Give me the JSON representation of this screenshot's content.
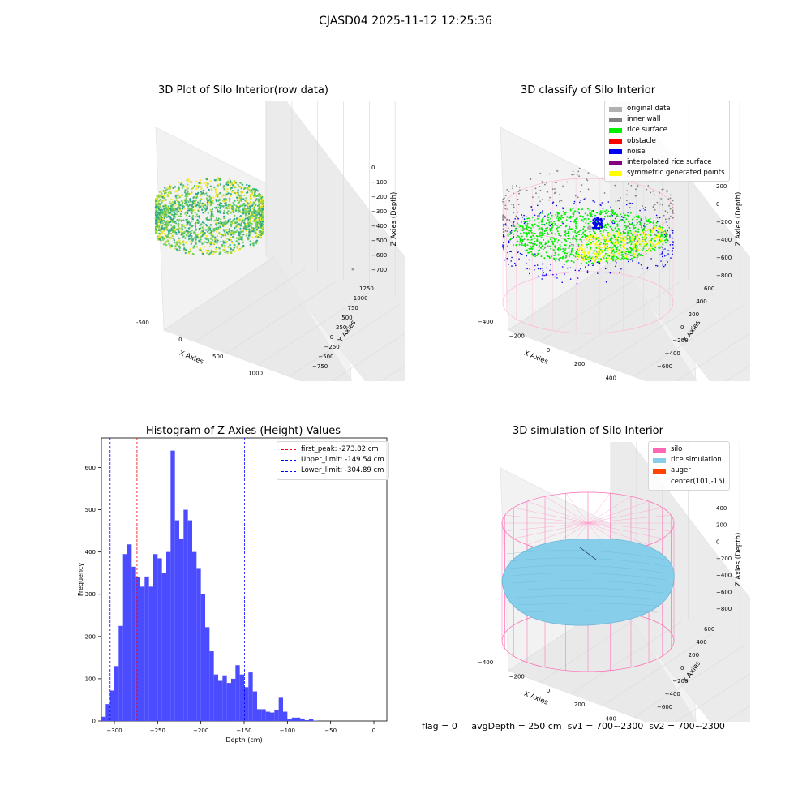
{
  "suptitle": "CJASD04 2025-11-12 12:25:36",
  "panels": {
    "raw": {
      "title": "3D Plot of Silo Interior(row data)",
      "xlabel": "X Axies",
      "ylabel": "Y Axies",
      "zlabel": "Z Axies (Depth)",
      "xticks": [
        "-500",
        "0",
        "500",
        "1000",
        "1500"
      ],
      "yticks": [
        "1250",
        "1000",
        "750",
        "500",
        "250",
        "0",
        "−250",
        "−500",
        "−750"
      ],
      "zticks": [
        "0",
        "−100",
        "−200",
        "−300",
        "−400",
        "−500",
        "−600",
        "−700"
      ]
    },
    "classify": {
      "title": "3D classify of Silo Interior",
      "xlabel": "X Axies",
      "ylabel": "Y Axies",
      "zlabel": "Z Axies (Depth)",
      "xticks": [
        "−400",
        "−200",
        "0",
        "200",
        "400",
        "600"
      ],
      "yticks": [
        "600",
        "400",
        "200",
        "0",
        "−200",
        "−400",
        "−600"
      ],
      "zticks": [
        "200",
        "0",
        "−200",
        "−400",
        "−600",
        "−800"
      ],
      "legend": [
        {
          "label": "original data",
          "color": "#b0b0b0"
        },
        {
          "label": "inner wall",
          "color": "#808080"
        },
        {
          "label": "rice surface",
          "color": "#00ee00"
        },
        {
          "label": "obstacle",
          "color": "#ff0000"
        },
        {
          "label": "noise",
          "color": "#0000ee"
        },
        {
          "label": "interpolated rice surface",
          "color": "#800080"
        },
        {
          "label": "symmetric generated points",
          "color": "#ffff00"
        }
      ]
    },
    "histogram": {
      "title": "Histogram of Z-Axies (Height) Values",
      "xlabel": "Depth (cm)",
      "ylabel": "Frequency",
      "xticks": [
        "−300",
        "−250",
        "−200",
        "−150",
        "−100",
        "−50",
        "0"
      ],
      "yticks": [
        "0",
        "100",
        "200",
        "300",
        "400",
        "500",
        "600"
      ],
      "legend": [
        {
          "label": "first_peak: -273.82 cm",
          "color": "#ff0000"
        },
        {
          "label": "Upper_limit: -149.54 cm",
          "color": "#0000ff"
        },
        {
          "label": "Lower_limit: -304.89 cm",
          "color": "#0000ff"
        }
      ]
    },
    "simulation": {
      "title": "3D simulation of Silo Interior",
      "xlabel": "X Axies",
      "ylabel": "Y Axies",
      "zlabel": "Z Axies (Depth)",
      "xticks": [
        "−400",
        "−200",
        "0",
        "200",
        "400",
        "600"
      ],
      "yticks": [
        "600",
        "400",
        "200",
        "0",
        "−200",
        "−400",
        "−600"
      ],
      "zticks": [
        "400",
        "200",
        "0",
        "−200",
        "−400",
        "−600",
        "−800"
      ],
      "legend": [
        {
          "label": "silo",
          "color": "#ff69b4"
        },
        {
          "label": "rice simulation",
          "color": "#87ceeb"
        },
        {
          "label": "auger",
          "color": "#ff4500"
        },
        {
          "label": "center(101,-15)",
          "color": ""
        }
      ]
    }
  },
  "footer": {
    "flag": "flag = 0",
    "avg_depth": "avgDepth = 250 cm",
    "sv1": "sv1 = 700~2300",
    "sv2": "sv2 = 700~2300"
  },
  "chart_data": [
    {
      "type": "scatter",
      "panel": "raw",
      "title": "3D Plot of Silo Interior(row data)",
      "xlabel": "X Axies",
      "ylabel": "Y Axies",
      "zlabel": "Z Axies (Depth)",
      "xlim": [
        -600,
        1500
      ],
      "ylim": [
        -750,
        1400
      ],
      "zlim": [
        -750,
        50
      ]
    },
    {
      "type": "scatter",
      "panel": "classify",
      "title": "3D classify of Silo Interior",
      "xlabel": "X Axies",
      "ylabel": "Y Axies",
      "zlabel": "Z Axies (Depth)",
      "xlim": [
        -450,
        650
      ],
      "ylim": [
        -650,
        650
      ],
      "zlim": [
        -900,
        300
      ],
      "legend_position": "top-right"
    },
    {
      "type": "bar",
      "panel": "histogram",
      "title": "Histogram of Z-Axies (Height) Values",
      "xlabel": "Depth (cm)",
      "ylabel": "Frequency",
      "xlim": [
        -315,
        15
      ],
      "ylim": [
        0,
        670
      ],
      "bin_edges_start": -315,
      "bin_width": 5,
      "values": [
        10,
        40,
        72,
        130,
        225,
        395,
        418,
        365,
        340,
        318,
        342,
        318,
        395,
        385,
        350,
        400,
        640,
        475,
        432,
        500,
        475,
        400,
        362,
        300,
        222,
        165,
        110,
        95,
        108,
        90,
        100,
        132,
        110,
        80,
        115,
        70,
        28,
        28,
        22,
        20,
        25,
        55,
        22,
        5,
        8,
        8,
        6,
        2,
        4,
        1
      ],
      "vlines": [
        {
          "name": "first_peak",
          "x": -273.82,
          "color": "#ff0000"
        },
        {
          "name": "Upper_limit",
          "x": -149.54,
          "color": "#0000ff"
        },
        {
          "name": "Lower_limit",
          "x": -304.89,
          "color": "#0000ff"
        }
      ],
      "legend_position": "top-right"
    },
    {
      "type": "scatter",
      "panel": "simulation",
      "title": "3D simulation of Silo Interior",
      "xlabel": "X Axies",
      "ylabel": "Y Axies",
      "zlabel": "Z Axies (Depth)",
      "xlim": [
        -450,
        650
      ],
      "ylim": [
        -650,
        650
      ],
      "zlim": [
        -900,
        450
      ],
      "legend_position": "top-right"
    }
  ]
}
